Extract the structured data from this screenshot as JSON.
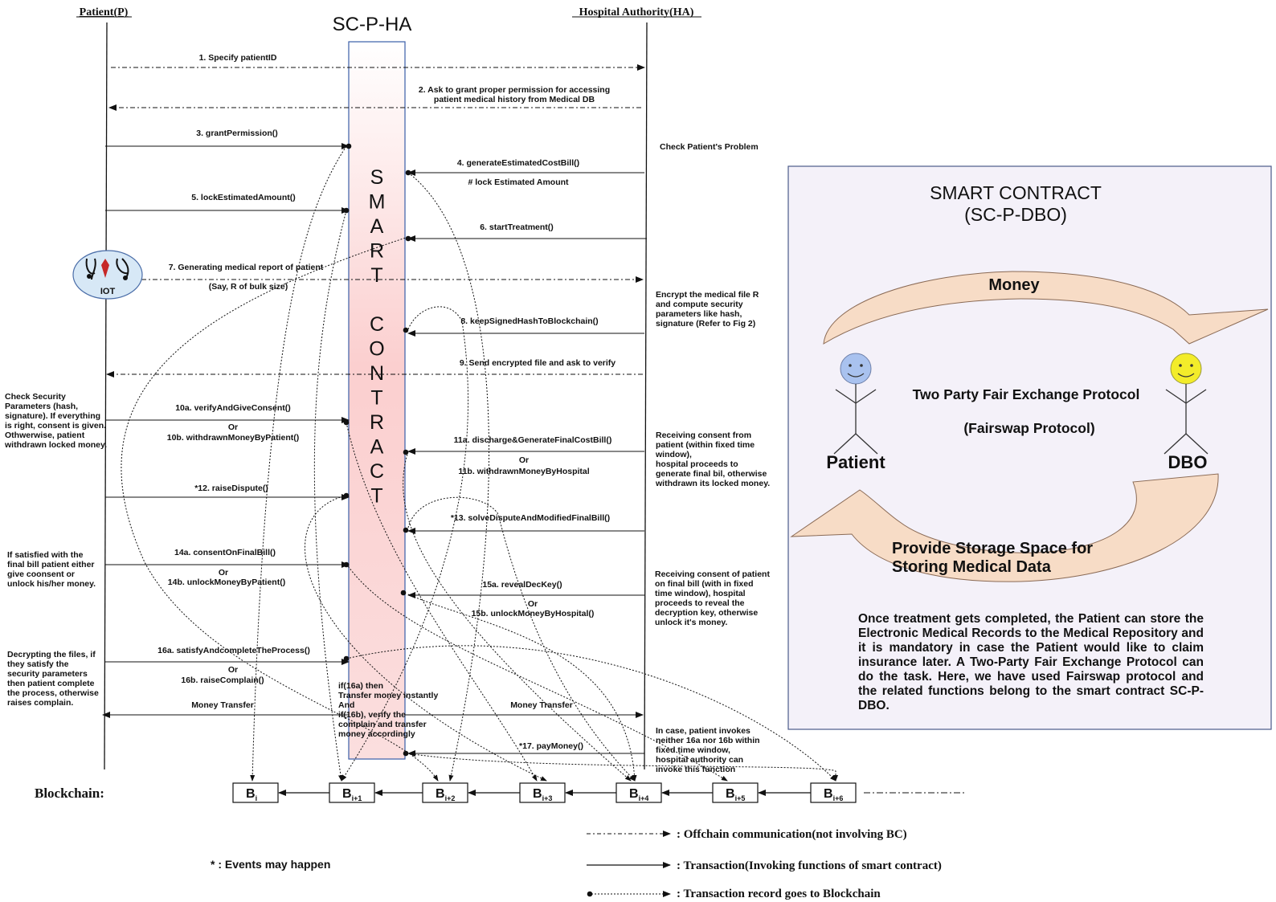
{
  "headers": {
    "patient": "Patient(P)",
    "contract": "SC-P-HA",
    "hospital": "Hospital Authority(HA)"
  },
  "contract_vertical": [
    "S",
    "M",
    "A",
    "R",
    "T",
    "",
    "C",
    "O",
    "N",
    "T",
    "R",
    "A",
    "C",
    "T"
  ],
  "iot_label": "IOT",
  "messages": {
    "m1": "1. Specify patientID",
    "m2a": "2. Ask to grant proper permission for accessing",
    "m2b": "patient medical history from Medical DB",
    "m3": "3. grantPermission()",
    "m4": "4. generateEstimatedCostBill()",
    "m4note": "#  lock Estimated Amount",
    "m5": "5. lockEstimatedAmount()",
    "m6": "6. startTreatment()",
    "m7": "7. Generating medical report of patient",
    "m7note": "(Say, R of bulk size)",
    "m8": "8. keepSignedHashToBlockchain()",
    "m9": "9. Send encrypted file and ask to verify",
    "m10a": "10a. verifyAndGiveConsent()",
    "m10or": "Or",
    "m10b": "10b. withdrawnMoneyByPatient()",
    "m11a": "11a.  discharge&GenerateFinalCostBill()",
    "m11or": "Or",
    "m11b": "11b. withdrawnMoneyByHospital",
    "m12": "*12. raiseDispute()",
    "m13": "*13. solveDisputeAndModifiedFinalBill()",
    "m14a": "14a. consentOnFinalBill()",
    "m14or": "Or",
    "m14b": "14b. unlockMoneyByPatient()",
    "m15a": "15a. revealDecKey()",
    "m15or": "Or",
    "m15b": "15b. unlockMoneyByHospital()",
    "m16a": "16a. satisfyAndcompleteTheProcess()",
    "m16or": "Or",
    "m16b": "16b. raiseComplain()",
    "money_left": "Money Transfer",
    "money_right": "Money Transfer",
    "m17": "*17. payMoney()"
  },
  "notes": {
    "check_problem": "Check Patient's Problem",
    "encrypt": [
      "Encrypt the medical file R",
      "and compute security",
      "parameters like hash,",
      "signature (Refer to Fig 2)"
    ],
    "check_security": [
      "Check Security",
      "Parameters (hash,",
      "signature). If everything",
      "is right, consent is given.",
      "Othwerwise, patient",
      "withdrawn locked money."
    ],
    "receiving_consent": [
      "Receiving consent from",
      "patient (within fixed time",
      "window),",
      "hospital proceeds to",
      "generate final bil, otherwise",
      "withdrawn its locked money."
    ],
    "if_satisfied": [
      "If satisfied with the",
      "final bill patient either",
      "give coonsent or",
      "unlock his/her money."
    ],
    "receiving_final": [
      "Receiving consent of patient",
      "on final bill (with in fixed",
      "time window), hospital",
      "proceeds to reveal the",
      "decryption key, otherwise",
      "unlock it's money."
    ],
    "decrypting": [
      "Decrypting the files, if",
      "they satisfy the",
      "security parameters",
      "then patient complete",
      "the process, otherwise",
      "raises complain."
    ],
    "if16": [
      "if(16a) then",
      "Transfer  money instantly",
      "And",
      "if(16b), verify the",
      "complain and transfer",
      "money accordingly"
    ],
    "in_case": [
      "In case, patient invokes",
      "neither 16a nor 16b within",
      "fixed time window,",
      "hospital authority can",
      "invoke this function"
    ]
  },
  "blockchain": {
    "label": "Blockchain:",
    "blocks": [
      {
        "b": "B",
        "sub": "i"
      },
      {
        "b": "B",
        "sub": "i+1"
      },
      {
        "b": "B",
        "sub": "i+2"
      },
      {
        "b": "B",
        "sub": "i+3"
      },
      {
        "b": "B",
        "sub": "i+4"
      },
      {
        "b": "B",
        "sub": "i+5"
      },
      {
        "b": "B",
        "sub": "i+6"
      }
    ]
  },
  "legend": {
    "offchain": ": Offchain communication(not involving BC)",
    "transaction": ": Transaction(Invoking functions of smart contract)",
    "record": ": Transaction record goes to Blockchain",
    "events": "* : Events may happen"
  },
  "dbo": {
    "title1": "SMART CONTRACT",
    "title2": "(SC-P-DBO)",
    "money": "Money",
    "protocol1": "Two Party Fair Exchange Protocol",
    "protocol2": "(Fairswap Protocol)",
    "patient": "Patient",
    "dbo": "DBO",
    "storage1": "Provide Storage Space for",
    "storage2": "Storing Medical Data",
    "paragraph": "Once treatment gets completed, the Patient can store the Electronic Medical Records to the Medical Repository and it is mandatory in case the Patient would like to claim insurance later. A Two-Party Fair Exchange Protocol can do the task. Here, we have used Fairswap protocol and the related functions belong to the smart contract SC-P-DBO.",
    "colors": {
      "panel_bg": "#f4f1f9",
      "arrow_fill": "#f7dcc6",
      "patient_face": "#a9c2ef",
      "dbo_face": "#f3ec2a"
    }
  }
}
